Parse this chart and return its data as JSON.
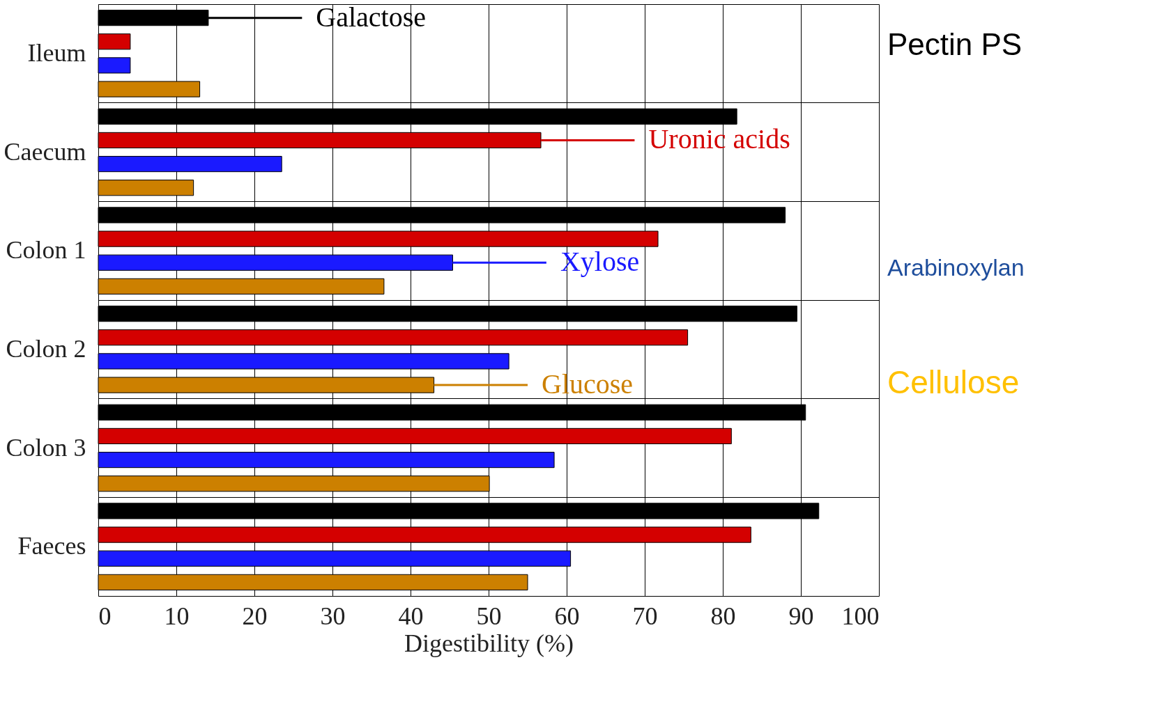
{
  "chart_data": {
    "type": "bar",
    "orientation": "horizontal",
    "xlabel": "Digestibility (%)",
    "categories": [
      "Ileum",
      "Caecum",
      "Colon 1",
      "Colon 2",
      "Colon 3",
      "Faeces"
    ],
    "series": [
      {
        "name": "Galactose",
        "color": "#000000",
        "values": [
          14.1,
          81.8,
          88.0,
          89.5,
          90.6,
          92.3
        ]
      },
      {
        "name": "Uronic acids",
        "color": "#d40000",
        "values": [
          4.1,
          56.7,
          71.7,
          75.5,
          81.1,
          83.6
        ]
      },
      {
        "name": "Xylose",
        "color": "#1a1aff",
        "values": [
          4.1,
          23.5,
          45.4,
          52.6,
          58.4,
          60.5
        ]
      },
      {
        "name": "Glucose",
        "color": "#cc8000",
        "values": [
          13.0,
          12.2,
          36.6,
          43.0,
          50.1,
          55.0
        ]
      }
    ],
    "xlim": [
      0,
      100
    ],
    "xticks": [
      0,
      10,
      20,
      30,
      40,
      50,
      60,
      70,
      80,
      90,
      100
    ],
    "grid": true,
    "legend": "top",
    "annotations": [
      "Pectin PS",
      "Arabinoxylan",
      "Cellulose"
    ]
  }
}
